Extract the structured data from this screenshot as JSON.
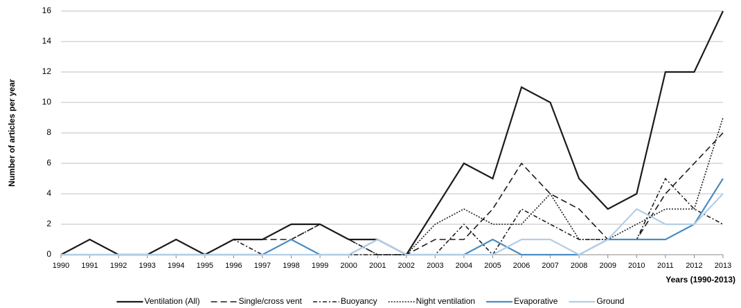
{
  "chart_data": {
    "type": "line",
    "y_label": "Number of articles per year",
    "x_label": "Years (1990-2013)",
    "categories": [
      "1990",
      "1991",
      "1992",
      "1993",
      "1994",
      "1995",
      "1996",
      "1997",
      "1998",
      "1999",
      "2000",
      "2001",
      "2002",
      "2003",
      "2004",
      "2005",
      "2006",
      "2007",
      "2008",
      "2009",
      "2010",
      "2011",
      "2012",
      "2013"
    ],
    "series": [
      {
        "name": "Ventilation (All)",
        "color": "#1a1a1a",
        "dash": "solid",
        "values": [
          0,
          1,
          0,
          0,
          1,
          0,
          1,
          1,
          2,
          2,
          1,
          1,
          0,
          3,
          6,
          5,
          11,
          10,
          5,
          3,
          4,
          12,
          12,
          16
        ]
      },
      {
        "name": "Single/cross vent",
        "color": "#1a1a1a",
        "dash": "dash",
        "values": [
          0,
          0,
          0,
          0,
          0,
          0,
          1,
          1,
          1,
          2,
          1,
          0,
          0,
          1,
          1,
          3,
          6,
          4,
          3,
          1,
          1,
          4,
          6,
          8
        ]
      },
      {
        "name": "Buoyancy",
        "color": "#1a1a1a",
        "dash": "dashdot",
        "values": [
          0,
          0,
          0,
          0,
          0,
          0,
          1,
          0,
          0,
          0,
          0,
          0,
          0,
          0,
          2,
          0,
          3,
          2,
          1,
          1,
          1,
          5,
          3,
          2
        ]
      },
      {
        "name": "Night ventilation",
        "color": "#1a1a1a",
        "dash": "dot",
        "values": [
          0,
          0,
          0,
          0,
          0,
          0,
          0,
          0,
          1,
          2,
          1,
          0,
          0,
          2,
          3,
          2,
          2,
          4,
          1,
          1,
          2,
          3,
          3,
          9
        ]
      },
      {
        "name": "Evaporative",
        "color": "#4a8cc0",
        "dash": "solid",
        "values": [
          0,
          0,
          0,
          0,
          0,
          0,
          0,
          0,
          1,
          0,
          0,
          1,
          0,
          0,
          0,
          1,
          0,
          0,
          0,
          1,
          1,
          1,
          2,
          5
        ]
      },
      {
        "name": "Ground",
        "color": "#b3cde6",
        "dash": "solid",
        "values": [
          0,
          0,
          0,
          0,
          0,
          0,
          0,
          0,
          0,
          0,
          0,
          1,
          0,
          0,
          0,
          0,
          1,
          1,
          0,
          1,
          3,
          2,
          2,
          4
        ]
      }
    ],
    "ylim": [
      0,
      16
    ],
    "yticks": [
      0,
      2,
      4,
      6,
      8,
      10,
      12,
      14,
      16
    ],
    "grid": true,
    "legend": "bottom"
  }
}
